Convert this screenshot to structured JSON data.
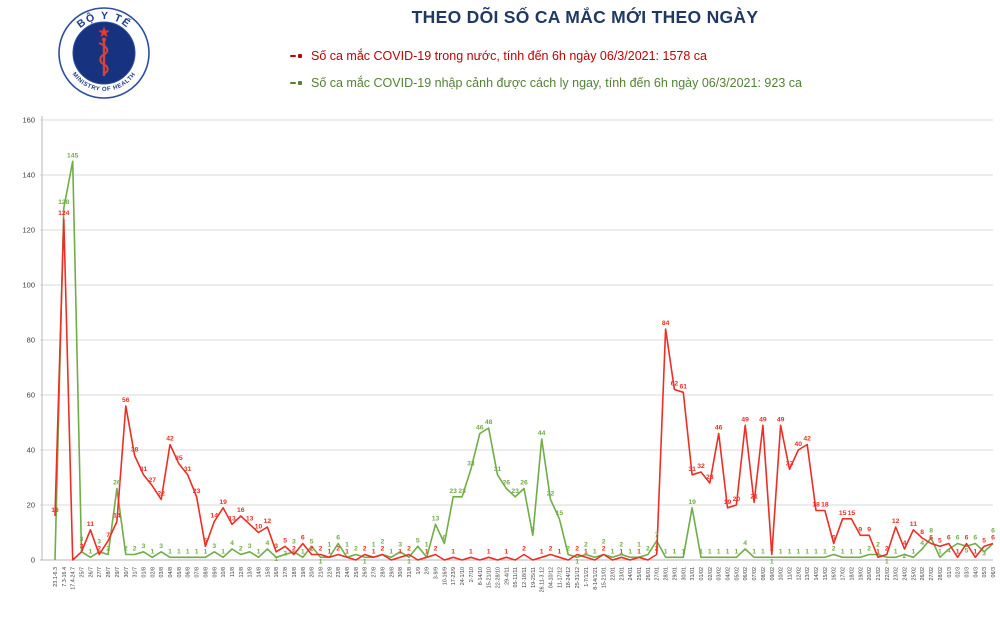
{
  "header": {
    "title": "THEO DÕI SỐ CA MẮC MỚI THEO NGÀY",
    "title_color": "#1F3864",
    "logo": {
      "top_text": "BỘ Y TẾ",
      "bottom_text": "MINISTRY OF HEALTH"
    }
  },
  "legend": {
    "domestic": {
      "label": "Số ca mắc COVID-19 trong nước, tính đến 6h ngày 06/3/2021: 1578 ca",
      "color": "#C00000"
    },
    "imported": {
      "label": "Số ca mắc COVID-19 nhập cảnh được cách ly ngay, tính đến 6h ngày 06/3/2021: 923 ca",
      "color": "#538135"
    }
  },
  "chart_data": {
    "type": "line",
    "title": "THEO DÕI SỐ CA MẮC MỚI THEO NGÀY",
    "ylim": [
      0,
      160
    ],
    "ytick_step": 20,
    "grid": true,
    "legend_position": "top",
    "categories": [
      "23.1-6.3",
      "7.3-16.4",
      "17.4-24.7",
      "25/7",
      "26/7",
      "27/7",
      "28/7",
      "29/7",
      "30/7",
      "31/7",
      "01/8",
      "02/8",
      "03/8",
      "04/8",
      "05/8",
      "06/8",
      "07/8",
      "08/8",
      "09/8",
      "10/8",
      "11/8",
      "12/8",
      "13/8",
      "14/8",
      "15/8",
      "16/8",
      "17/8",
      "18/8",
      "19/8",
      "20/8",
      "21/8",
      "22/8",
      "23/8",
      "24/8",
      "25/8",
      "26/8",
      "27/8",
      "28/8",
      "29/8",
      "30/8",
      "31/8",
      "1/9",
      "2/9",
      "3-9/9",
      "10-16/9",
      "17-23/9",
      "24-1/10",
      "2-7/10",
      "8-14/10",
      "15-21/10",
      "22-28/10",
      "29-4/11",
      "05-11/11",
      "12-18/11",
      "19-25/11",
      "26.11-3.12",
      "04-10/12",
      "11-17/12",
      "18-24/12",
      "25-31/12",
      "1-7/1/21",
      "8-14/1/21",
      "15-21/01",
      "22/01",
      "23/01",
      "24/01",
      "25/01",
      "26/01",
      "27/01",
      "28/01",
      "29/01",
      "30/01",
      "31/01",
      "01/02",
      "02/02",
      "03/02",
      "04/02",
      "05/02",
      "06/02",
      "07/02",
      "08/02",
      "09/02",
      "10/02",
      "11/02",
      "12/02",
      "13/02",
      "14/02",
      "15/02",
      "16/02",
      "17/02",
      "18/02",
      "19/02",
      "20/02",
      "21/02",
      "22/02",
      "23/02",
      "24/02",
      "25/02",
      "26/02",
      "27/02",
      "28/02",
      "01/3",
      "02/3",
      "03/3",
      "04/3",
      "05/3",
      "06/3"
    ],
    "series": [
      {
        "id": "domestic",
        "name": "Số ca mắc COVID-19 trong nước",
        "color": "#EE2E24",
        "total_label": "1578 ca",
        "values": [
          16,
          124,
          0,
          3,
          11,
          2,
          7,
          14,
          56,
          38,
          31,
          27,
          22,
          42,
          35,
          31,
          23,
          5,
          14,
          19,
          13,
          16,
          13,
          10,
          12,
          3,
          5,
          2,
          6,
          2,
          2,
          1,
          2,
          1,
          0,
          2,
          1,
          2,
          0,
          1,
          2,
          0,
          1,
          2,
          0,
          1,
          0,
          1,
          0,
          1,
          0,
          1,
          0,
          2,
          0,
          1,
          2,
          1,
          0,
          2,
          1,
          0,
          2,
          0,
          1,
          0,
          1,
          0,
          2,
          84,
          62,
          61,
          31,
          32,
          28,
          46,
          19,
          20,
          49,
          21,
          49,
          2,
          49,
          33,
          40,
          42,
          18,
          18,
          6,
          15,
          15,
          9,
          9,
          1,
          2,
          12,
          4,
          11,
          8,
          6,
          5,
          6,
          1,
          6,
          1,
          5,
          6
        ]
      },
      {
        "id": "imported",
        "name": "Số ca mắc COVID-19 nhập cảnh được cách ly ngay",
        "color": "#70AD47",
        "total_label": "923 ca",
        "values": [
          0,
          128,
          145,
          3,
          1,
          3,
          2,
          26,
          2,
          2,
          3,
          1,
          3,
          1,
          1,
          1,
          1,
          1,
          3,
          1,
          4,
          2,
          3,
          1,
          4,
          1,
          2,
          3,
          1,
          5,
          1,
          1,
          6,
          1,
          2,
          1,
          1,
          2,
          1,
          3,
          1,
          5,
          1,
          13,
          6,
          23,
          23,
          33,
          46,
          48,
          31,
          26,
          23,
          26,
          9,
          44,
          22,
          15,
          2,
          1,
          2,
          1,
          2,
          1,
          2,
          1,
          1,
          2,
          7,
          1,
          1,
          1,
          19,
          1,
          1,
          1,
          1,
          1,
          4,
          1,
          1,
          1,
          1,
          1,
          1,
          1,
          1,
          1,
          2,
          1,
          1,
          1,
          2,
          2,
          1,
          1,
          2,
          1,
          4,
          8,
          1,
          4,
          6,
          5,
          6,
          3,
          6
        ]
      }
    ]
  }
}
